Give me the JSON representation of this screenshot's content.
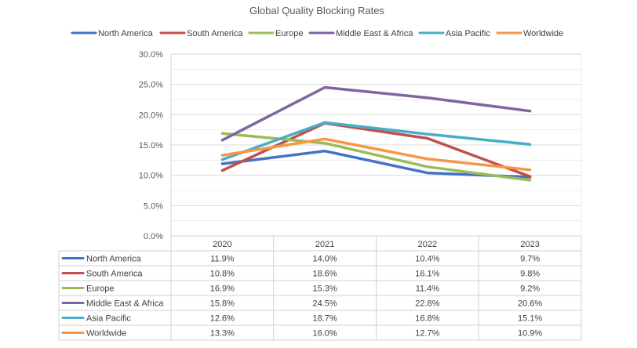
{
  "chart_data": {
    "type": "line",
    "title": "Global Quality Blocking Rates",
    "categories": [
      "2020",
      "2021",
      "2022",
      "2023"
    ],
    "ylim": [
      0,
      30
    ],
    "yticks": [
      "0.0%",
      "5.0%",
      "10.0%",
      "15.0%",
      "20.0%",
      "25.0%",
      "30.0%"
    ],
    "ytick_values": [
      0,
      5,
      10,
      15,
      20,
      25,
      30
    ],
    "grid": true,
    "legend_position": "top",
    "data_table": true,
    "series": [
      {
        "name": "North America",
        "color": "#4472C4",
        "values": [
          11.9,
          14.0,
          10.4,
          9.7
        ],
        "labels": [
          "11.9%",
          "14.0%",
          "10.4%",
          "9.7%"
        ]
      },
      {
        "name": "South America",
        "color": "#C0504D",
        "values": [
          10.8,
          18.6,
          16.1,
          9.8
        ],
        "labels": [
          "10.8%",
          "18.6%",
          "16.1%",
          "9.8%"
        ]
      },
      {
        "name": "Europe",
        "color": "#9BBB59",
        "values": [
          16.9,
          15.3,
          11.4,
          9.2
        ],
        "labels": [
          "16.9%",
          "15.3%",
          "11.4%",
          "9.2%"
        ]
      },
      {
        "name": "Middle East & Africa",
        "color": "#8064A2",
        "values": [
          15.8,
          24.5,
          22.8,
          20.6
        ],
        "labels": [
          "15.8%",
          "24.5%",
          "22.8%",
          "20.6%"
        ]
      },
      {
        "name": "Asia Pacific",
        "color": "#4BACC6",
        "values": [
          12.6,
          18.7,
          16.8,
          15.1
        ],
        "labels": [
          "12.6%",
          "18.7%",
          "16.8%",
          "15.1%"
        ]
      },
      {
        "name": "Worldwide",
        "color": "#F79646",
        "values": [
          13.3,
          16.0,
          12.7,
          10.9
        ],
        "labels": [
          "13.3%",
          "16.0%",
          "12.7%",
          "10.9%"
        ]
      }
    ]
  }
}
